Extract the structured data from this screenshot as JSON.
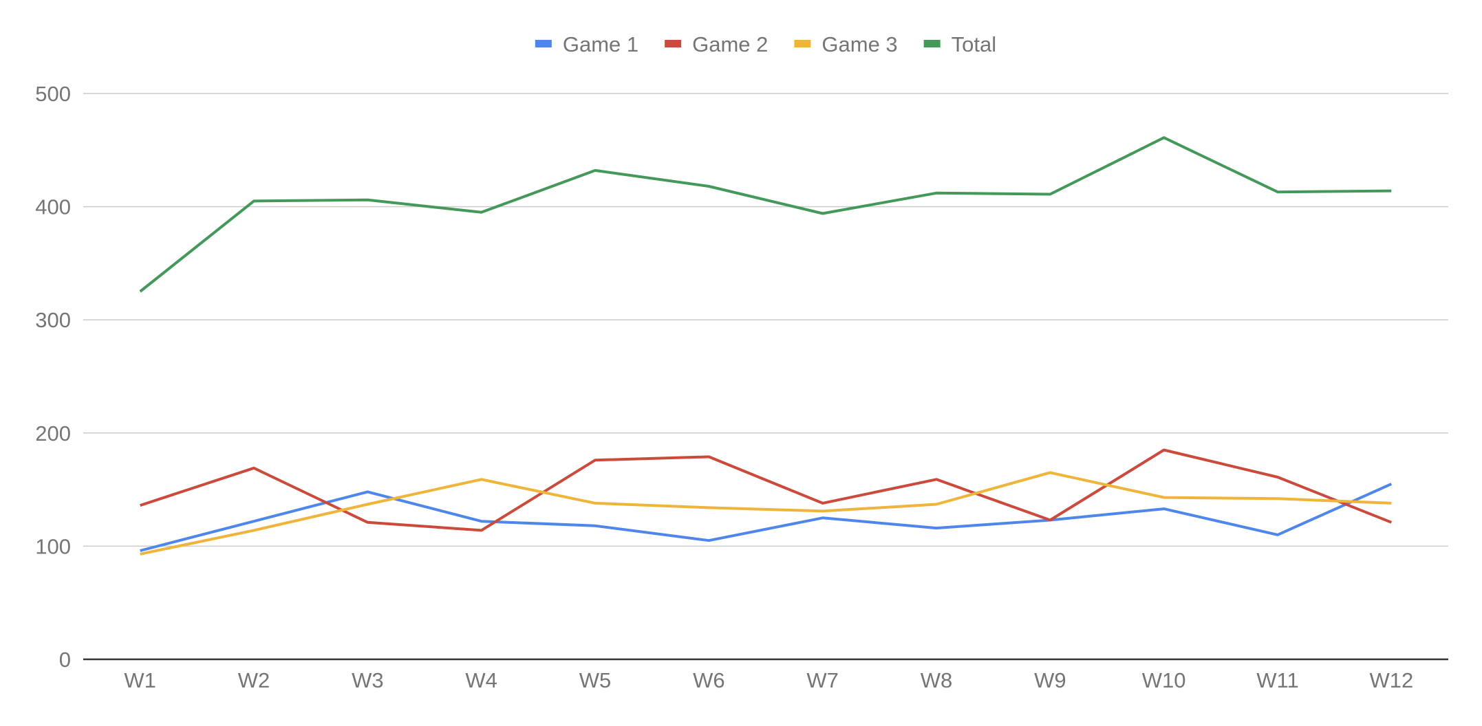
{
  "chart_data": {
    "type": "line",
    "title": "",
    "xlabel": "",
    "ylabel": "",
    "categories": [
      "W1",
      "W2",
      "W3",
      "W4",
      "W5",
      "W6",
      "W7",
      "W8",
      "W9",
      "W10",
      "W11",
      "W12"
    ],
    "ylim": [
      0,
      500
    ],
    "yticks": [
      0,
      100,
      200,
      300,
      400,
      500
    ],
    "ytick_labels": [
      "0",
      "100",
      "200",
      "300",
      "400",
      "500"
    ],
    "grid": true,
    "legend_position": "top",
    "series": [
      {
        "name": "Game 1",
        "color": "#4e86ec",
        "values": [
          96,
          122,
          148,
          122,
          118,
          105,
          125,
          116,
          123,
          133,
          110,
          155
        ]
      },
      {
        "name": "Game 2",
        "color": "#cc4a3b",
        "values": [
          136,
          169,
          121,
          114,
          176,
          179,
          138,
          159,
          123,
          185,
          161,
          121
        ]
      },
      {
        "name": "Game 3",
        "color": "#efb43a",
        "values": [
          93,
          114,
          137,
          159,
          138,
          134,
          131,
          137,
          165,
          143,
          142,
          138
        ]
      },
      {
        "name": "Total",
        "color": "#43985a",
        "values": [
          325,
          405,
          406,
          395,
          432,
          418,
          394,
          412,
          411,
          461,
          413,
          414
        ]
      }
    ]
  }
}
